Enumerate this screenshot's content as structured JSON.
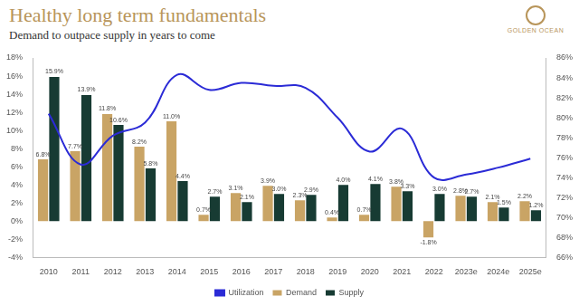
{
  "chart_data": {
    "type": "bar",
    "title": "Healthy long term fundamentals",
    "subtitle": "Demand to outpace supply in years to come",
    "brand": "GOLDEN OCEAN",
    "categories": [
      "2010",
      "2011",
      "2012",
      "2013",
      "2014",
      "2015",
      "2016",
      "2017",
      "2018",
      "2019",
      "2020",
      "2021",
      "2022",
      "2023e",
      "2024e",
      "2025e"
    ],
    "series": [
      {
        "name": "Demand",
        "type": "bar",
        "color": "#c9a465",
        "values": [
          6.8,
          7.7,
          11.8,
          8.2,
          11.0,
          0.7,
          3.1,
          3.9,
          2.3,
          0.4,
          0.7,
          3.8,
          -1.8,
          2.8,
          2.1,
          2.2
        ],
        "value_labels": [
          "6.8%",
          "7.7%",
          "11.8%",
          "8.2%",
          "11.0%",
          "0.7%",
          "3.1%",
          "3.9%",
          "2.3%",
          "0.4%",
          "0.7%",
          "3.8%",
          "-1.8%",
          "2.8%",
          "2.1%",
          "2.2%"
        ]
      },
      {
        "name": "Supply",
        "type": "bar",
        "color": "#173b33",
        "values": [
          15.9,
          13.9,
          10.6,
          5.8,
          4.4,
          2.7,
          2.1,
          3.0,
          2.9,
          4.0,
          4.1,
          3.3,
          3.0,
          2.7,
          1.5,
          1.2
        ],
        "value_labels": [
          "15.9%",
          "13.9%",
          "10.6%",
          "5.8%",
          "4.4%",
          "2.7%",
          "2.1%",
          "3.0%",
          "2.9%",
          "4.0%",
          "4.1%",
          "3.3%",
          "3.0%",
          "2.7%",
          "1.5%",
          "1.2%"
        ]
      },
      {
        "name": "Utilization",
        "type": "line",
        "axis": "y2",
        "color": "#2b2bd6",
        "values": [
          80.4,
          75.3,
          78.2,
          79.5,
          84.3,
          82.8,
          83.5,
          83.2,
          83.0,
          80.0,
          76.6,
          78.9,
          74.0,
          74.3,
          75.0,
          75.9
        ]
      }
    ],
    "ylim": [
      -4,
      18
    ],
    "yticks": [
      {
        "value": -4,
        "label": "-4%"
      },
      {
        "value": -2,
        "label": "-2%"
      },
      {
        "value": 0,
        "label": "0%"
      },
      {
        "value": 2,
        "label": "2%"
      },
      {
        "value": 4,
        "label": "4%"
      },
      {
        "value": 6,
        "label": "6%"
      },
      {
        "value": 8,
        "label": "8%"
      },
      {
        "value": 10,
        "label": "10%"
      },
      {
        "value": 12,
        "label": "12%"
      },
      {
        "value": 14,
        "label": "14%"
      },
      {
        "value": 16,
        "label": "16%"
      },
      {
        "value": 18,
        "label": "18%"
      }
    ],
    "y2lim": [
      66,
      86
    ],
    "y2ticks": [
      {
        "value": 66,
        "label": "66%"
      },
      {
        "value": 68,
        "label": "68%"
      },
      {
        "value": 70,
        "label": "70%"
      },
      {
        "value": 72,
        "label": "72%"
      },
      {
        "value": 74,
        "label": "74%"
      },
      {
        "value": 76,
        "label": "76%"
      },
      {
        "value": 78,
        "label": "78%"
      },
      {
        "value": 80,
        "label": "80%"
      },
      {
        "value": 82,
        "label": "82%"
      },
      {
        "value": 84,
        "label": "84%"
      },
      {
        "value": 86,
        "label": "86%"
      }
    ],
    "grid": false,
    "legend": "bottom",
    "data_labels": true
  }
}
